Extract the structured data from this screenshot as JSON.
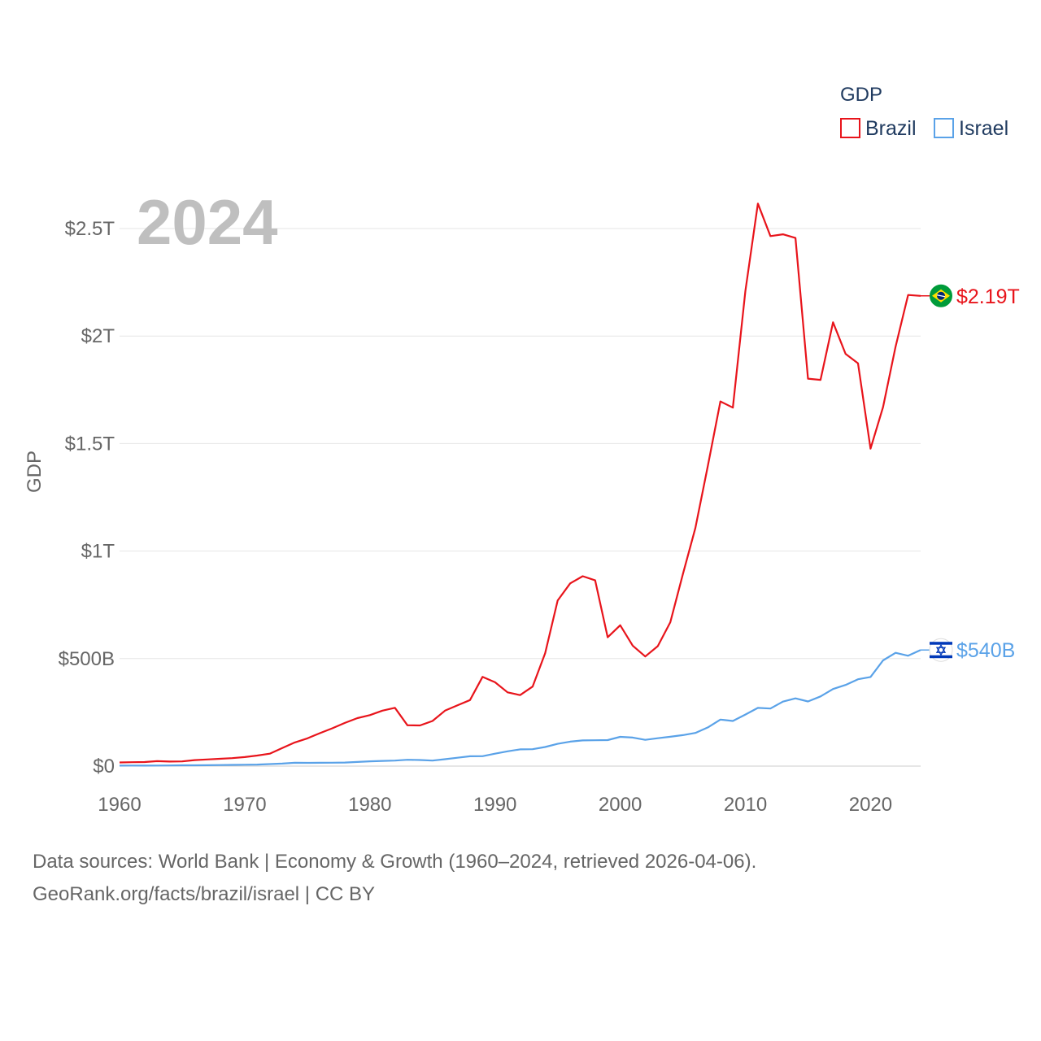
{
  "chart_data": {
    "type": "line",
    "title": "",
    "year_label": "2024",
    "xlabel": "",
    "ylabel": "GDP",
    "xlim": [
      1960,
      2024
    ],
    "ylim": [
      0,
      2.5
    ],
    "x_ticks": [
      1960,
      1970,
      1980,
      1990,
      2000,
      2010,
      2020
    ],
    "y_ticks": [
      {
        "value": 0,
        "label": "$0"
      },
      {
        "value": 0.5,
        "label": "$500B"
      },
      {
        "value": 1,
        "label": "$1T"
      },
      {
        "value": 1.5,
        "label": "$1.5T"
      },
      {
        "value": 2,
        "label": "$2T"
      },
      {
        "value": 2.5,
        "label": "$2.5T"
      }
    ],
    "units": "trillions of US dollars",
    "legend": {
      "title": "GDP",
      "position": "top-right"
    },
    "x": [
      1960,
      1961,
      1962,
      1963,
      1964,
      1965,
      1966,
      1967,
      1968,
      1969,
      1970,
      1971,
      1972,
      1973,
      1974,
      1975,
      1976,
      1977,
      1978,
      1979,
      1980,
      1981,
      1982,
      1983,
      1984,
      1985,
      1986,
      1987,
      1988,
      1989,
      1990,
      1991,
      1992,
      1993,
      1994,
      1995,
      1996,
      1997,
      1998,
      1999,
      2000,
      2001,
      2002,
      2003,
      2004,
      2005,
      2006,
      2007,
      2008,
      2009,
      2010,
      2011,
      2012,
      2013,
      2014,
      2015,
      2016,
      2017,
      2018,
      2019,
      2020,
      2021,
      2022,
      2023,
      2024
    ],
    "series": [
      {
        "name": "Brazil",
        "color": "#e8141b",
        "end_label": "$2.19T",
        "flag": "brazil",
        "values": [
          0.017,
          0.018,
          0.019,
          0.023,
          0.021,
          0.022,
          0.028,
          0.031,
          0.034,
          0.037,
          0.042,
          0.049,
          0.058,
          0.084,
          0.11,
          0.129,
          0.153,
          0.176,
          0.201,
          0.223,
          0.237,
          0.258,
          0.271,
          0.19,
          0.189,
          0.21,
          0.258,
          0.283,
          0.307,
          0.415,
          0.39,
          0.343,
          0.33,
          0.37,
          0.525,
          0.77,
          0.85,
          0.883,
          0.864,
          0.599,
          0.655,
          0.56,
          0.51,
          0.558,
          0.669,
          0.892,
          1.107,
          1.397,
          1.696,
          1.667,
          2.209,
          2.616,
          2.465,
          2.473,
          2.456,
          1.802,
          1.796,
          2.064,
          1.917,
          1.873,
          1.476,
          1.67,
          1.951,
          2.191,
          2.187
        ]
      },
      {
        "name": "Israel",
        "color": "#5aa2e8",
        "end_label": "$540B",
        "flag": "israel",
        "values": [
          0.0022,
          0.0025,
          0.0022,
          0.0025,
          0.0029,
          0.0036,
          0.0039,
          0.004,
          0.0048,
          0.0056,
          0.0063,
          0.0073,
          0.0094,
          0.0118,
          0.0155,
          0.0153,
          0.0154,
          0.016,
          0.0168,
          0.0193,
          0.0225,
          0.0243,
          0.0259,
          0.0295,
          0.0282,
          0.0257,
          0.0322,
          0.0388,
          0.0459,
          0.0463,
          0.0578,
          0.0688,
          0.078,
          0.0785,
          0.0888,
          0.1036,
          0.1139,
          0.1194,
          0.1204,
          0.1211,
          0.1362,
          0.1327,
          0.1223,
          0.1296,
          0.1364,
          0.1442,
          0.1544,
          0.18,
          0.2164,
          0.2098,
          0.2396,
          0.2709,
          0.2678,
          0.2999,
          0.315,
          0.3006,
          0.3241,
          0.3587,
          0.3774,
          0.4039,
          0.4147,
          0.4916,
          0.5267,
          0.5132,
          0.54
        ]
      }
    ]
  },
  "footer": {
    "line1": "Data sources: World Bank | Economy & Growth (1960–2024, retrieved 2026-04-06).",
    "line2": "GeoRank.org/facts/brazil/israel | CC BY"
  }
}
